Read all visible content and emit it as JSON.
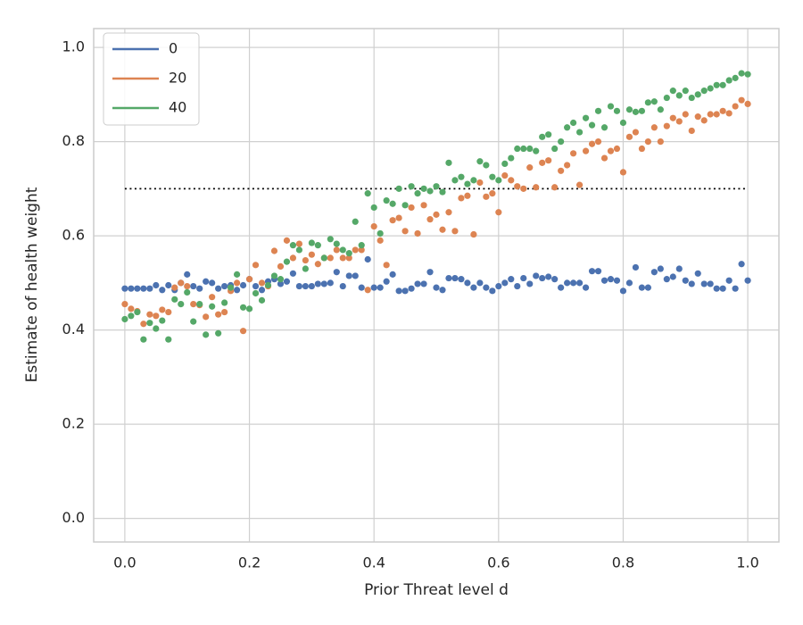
{
  "chart_data": {
    "type": "scatter",
    "xlabel": "Prior Threat level d",
    "ylabel": "Estimate of health weight",
    "x": [
      0,
      0.01,
      0.02,
      0.03,
      0.04,
      0.05,
      0.06,
      0.07,
      0.08,
      0.09,
      0.1,
      0.11,
      0.12,
      0.13,
      0.14,
      0.15,
      0.16,
      0.17,
      0.18,
      0.19,
      0.2,
      0.21,
      0.22,
      0.23,
      0.24,
      0.25,
      0.26,
      0.27,
      0.28,
      0.29,
      0.3,
      0.31,
      0.32,
      0.33,
      0.34,
      0.35,
      0.36,
      0.37,
      0.38,
      0.39,
      0.4,
      0.41,
      0.42,
      0.43,
      0.44,
      0.45,
      0.46,
      0.47,
      0.48,
      0.49,
      0.5,
      0.51,
      0.52,
      0.53,
      0.54,
      0.55,
      0.56,
      0.57,
      0.58,
      0.59,
      0.6,
      0.61,
      0.62,
      0.63,
      0.64,
      0.65,
      0.66,
      0.67,
      0.68,
      0.69,
      0.7,
      0.71,
      0.72,
      0.73,
      0.74,
      0.75,
      0.76,
      0.77,
      0.78,
      0.79,
      0.8,
      0.81,
      0.82,
      0.83,
      0.84,
      0.85,
      0.86,
      0.87,
      0.88,
      0.89,
      0.9,
      0.91,
      0.92,
      0.93,
      0.94,
      0.95,
      0.96,
      0.97,
      0.98,
      0.99,
      1.0
    ],
    "series": [
      {
        "name": "0",
        "color": "#4c72b0",
        "values": [
          0.488,
          0.488,
          0.488,
          0.488,
          0.488,
          0.495,
          0.485,
          0.495,
          0.485,
          0.5,
          0.518,
          0.493,
          0.488,
          0.503,
          0.5,
          0.488,
          0.493,
          0.495,
          0.485,
          0.495,
          0.508,
          0.493,
          0.485,
          0.503,
          0.508,
          0.498,
          0.503,
          0.52,
          0.493,
          0.493,
          0.493,
          0.498,
          0.498,
          0.5,
          0.523,
          0.493,
          0.515,
          0.515,
          0.49,
          0.55,
          0.49,
          0.49,
          0.503,
          0.518,
          0.483,
          0.483,
          0.488,
          0.498,
          0.498,
          0.523,
          0.49,
          0.485,
          0.51,
          0.51,
          0.508,
          0.5,
          0.49,
          0.5,
          0.49,
          0.483,
          0.493,
          0.5,
          0.508,
          0.493,
          0.51,
          0.498,
          0.515,
          0.51,
          0.513,
          0.508,
          0.49,
          0.5,
          0.5,
          0.5,
          0.49,
          0.525,
          0.525,
          0.505,
          0.508,
          0.505,
          0.483,
          0.5,
          0.533,
          0.49,
          0.49,
          0.523,
          0.53,
          0.508,
          0.513,
          0.53,
          0.505,
          0.498,
          0.52,
          0.498,
          0.498,
          0.488,
          0.488,
          0.505,
          0.488,
          0.54,
          0.505
        ]
      },
      {
        "name": "20",
        "color": "#dd8452",
        "values": [
          0.455,
          0.445,
          0.44,
          0.413,
          0.433,
          0.43,
          0.443,
          0.438,
          0.49,
          0.5,
          0.493,
          0.455,
          0.453,
          0.428,
          0.47,
          0.433,
          0.438,
          0.483,
          0.5,
          0.398,
          0.508,
          0.538,
          0.5,
          0.493,
          0.568,
          0.535,
          0.59,
          0.553,
          0.583,
          0.548,
          0.56,
          0.54,
          0.553,
          0.553,
          0.57,
          0.553,
          0.553,
          0.57,
          0.57,
          0.485,
          0.62,
          0.59,
          0.538,
          0.633,
          0.638,
          0.61,
          0.66,
          0.605,
          0.665,
          0.635,
          0.645,
          0.613,
          0.65,
          0.61,
          0.68,
          0.685,
          0.603,
          0.713,
          0.683,
          0.69,
          0.65,
          0.728,
          0.718,
          0.705,
          0.7,
          0.745,
          0.703,
          0.755,
          0.76,
          0.703,
          0.738,
          0.75,
          0.775,
          0.708,
          0.78,
          0.795,
          0.8,
          0.765,
          0.78,
          0.785,
          0.735,
          0.81,
          0.82,
          0.785,
          0.8,
          0.83,
          0.8,
          0.833,
          0.85,
          0.843,
          0.858,
          0.823,
          0.853,
          0.845,
          0.858,
          0.858,
          0.865,
          0.86,
          0.875,
          0.888,
          0.88
        ]
      },
      {
        "name": "40",
        "color": "#55a868",
        "values": [
          0.423,
          0.43,
          0.438,
          0.38,
          0.415,
          0.403,
          0.42,
          0.38,
          0.465,
          0.455,
          0.48,
          0.418,
          0.455,
          0.39,
          0.45,
          0.393,
          0.458,
          0.49,
          0.518,
          0.448,
          0.445,
          0.478,
          0.463,
          0.495,
          0.515,
          0.508,
          0.545,
          0.58,
          0.57,
          0.53,
          0.585,
          0.58,
          0.553,
          0.593,
          0.583,
          0.57,
          0.563,
          0.63,
          0.58,
          0.69,
          0.66,
          0.605,
          0.675,
          0.668,
          0.7,
          0.665,
          0.705,
          0.69,
          0.7,
          0.695,
          0.705,
          0.693,
          0.755,
          0.718,
          0.725,
          0.71,
          0.718,
          0.758,
          0.75,
          0.725,
          0.718,
          0.753,
          0.765,
          0.785,
          0.785,
          0.785,
          0.78,
          0.81,
          0.815,
          0.785,
          0.8,
          0.83,
          0.84,
          0.82,
          0.85,
          0.835,
          0.865,
          0.83,
          0.875,
          0.865,
          0.84,
          0.868,
          0.863,
          0.865,
          0.883,
          0.885,
          0.868,
          0.893,
          0.908,
          0.898,
          0.908,
          0.893,
          0.9,
          0.908,
          0.913,
          0.92,
          0.92,
          0.93,
          0.935,
          0.945,
          0.943
        ]
      }
    ],
    "reference_line": {
      "y": 0.7,
      "x": [
        0,
        1.0
      ],
      "color": "#000000"
    },
    "xlim": [
      -0.05,
      1.05
    ],
    "ylim": [
      -0.05,
      1.04
    ],
    "xticks": [
      {
        "value": 0,
        "label": "0.0"
      },
      0.2,
      0.4,
      0.6,
      0.8,
      {
        "value": 1,
        "label": "1.0"
      }
    ],
    "yticks": [
      {
        "value": 0,
        "label": "0.0"
      },
      0.2,
      0.4,
      0.6,
      0.8,
      {
        "value": 1,
        "label": "1.0"
      }
    ],
    "grid": true,
    "legend": "upper left"
  }
}
